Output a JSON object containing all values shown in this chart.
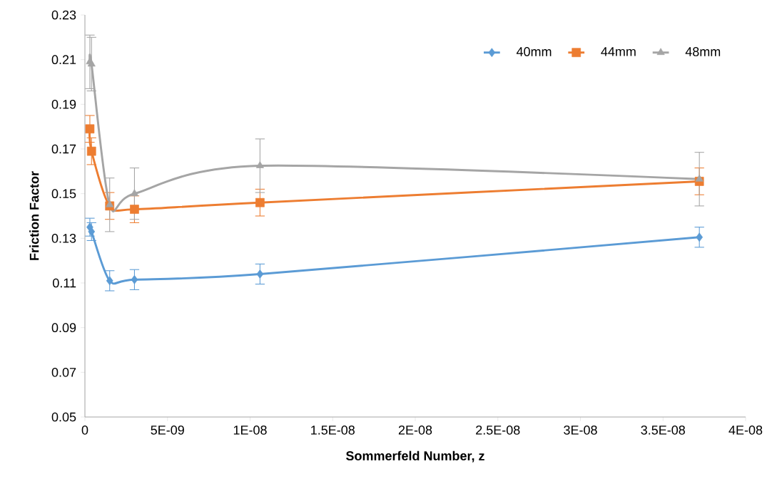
{
  "chart_data": {
    "type": "line",
    "xlabel": "Sommerfeld Number, z",
    "ylabel": "Friction Factor",
    "xlim": [
      0,
      4e-08
    ],
    "ylim": [
      0.05,
      0.23
    ],
    "xticks": [
      0,
      {
        "value": 5e-09,
        "label": "5E-09"
      },
      {
        "value": 1e-08,
        "label": "1E-08"
      },
      {
        "value": 1.5e-08,
        "label": "1.5E-08"
      },
      {
        "value": 2e-08,
        "label": "2E-08"
      },
      {
        "value": 2.5e-08,
        "label": "2.5E-08"
      },
      {
        "value": 3e-08,
        "label": "3E-08"
      },
      {
        "value": 3.5e-08,
        "label": "3.5E-08"
      },
      {
        "value": 4e-08,
        "label": "4E-08"
      }
    ],
    "yticks": [
      0.05,
      0.07,
      0.09,
      0.11,
      0.13,
      0.15,
      0.17,
      0.19,
      0.21,
      0.23
    ],
    "grid": false,
    "legend": "top right",
    "series": [
      {
        "name": "40mm",
        "color": "#5b9bd5",
        "marker": "diamond",
        "x": [
          3e-10,
          4e-10,
          1.5e-09,
          3e-09,
          1.06e-08,
          3.72e-08
        ],
        "values": [
          0.135,
          0.133,
          0.111,
          0.1115,
          0.114,
          0.1305
        ],
        "errors": [
          0.004,
          0.004,
          0.0045,
          0.0045,
          0.0045,
          0.0045
        ]
      },
      {
        "name": "44mm",
        "color": "#ed7d31",
        "marker": "square",
        "x": [
          3e-10,
          4e-10,
          1.5e-09,
          3e-09,
          1.06e-08,
          3.72e-08
        ],
        "values": [
          0.179,
          0.169,
          0.1445,
          0.143,
          0.146,
          0.1555
        ],
        "errors": [
          0.006,
          0.006,
          0.006,
          0.006,
          0.006,
          0.006
        ]
      },
      {
        "name": "48mm",
        "color": "#a5a5a5",
        "marker": "triangle",
        "x": [
          3e-10,
          4e-10,
          1.5e-09,
          3e-09,
          1.06e-08,
          3.72e-08
        ],
        "values": [
          0.209,
          0.208,
          0.145,
          0.15,
          0.1625,
          0.1565
        ],
        "errors": [
          0.012,
          0.012,
          0.012,
          0.0115,
          0.012,
          0.012
        ]
      }
    ]
  }
}
